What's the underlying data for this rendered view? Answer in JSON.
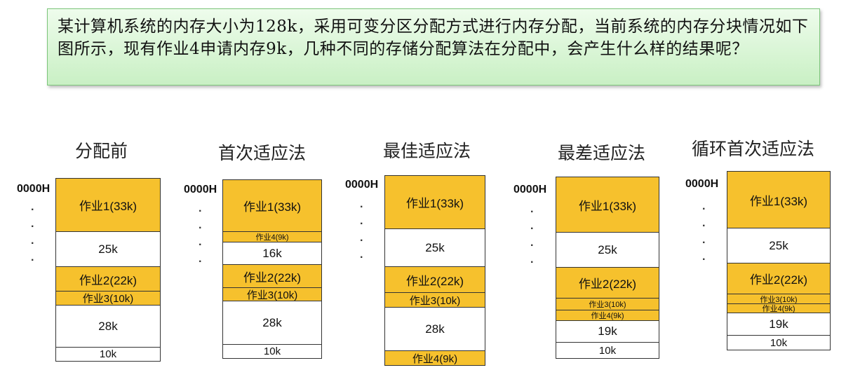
{
  "problem_text": "某计算机系统的内存大小为128k，采用可变分区分配方式进行内存分配，当前系统的内存分块情况如下图所示，现有作业4申请内存9k，几种不同的存储分配算法在分配中，会产生什么样的结果呢？",
  "start_address": "0000H",
  "columns": [
    {
      "title": "分配前",
      "blocks": [
        {
          "label": "作业1(33k)",
          "type": "allocated"
        },
        {
          "label": "25k",
          "type": "free"
        },
        {
          "label": "作业2(22k)",
          "type": "allocated"
        },
        {
          "label": "作业3(10k)",
          "type": "allocated"
        },
        {
          "label": "28k",
          "type": "free"
        },
        {
          "label": "10k",
          "type": "free"
        }
      ]
    },
    {
      "title": "首次适应法",
      "blocks": [
        {
          "label": "作业1(33k)",
          "type": "allocated"
        },
        {
          "label": "作业4(9k)",
          "type": "allocated"
        },
        {
          "label": "16k",
          "type": "free"
        },
        {
          "label": "作业2(22k)",
          "type": "allocated"
        },
        {
          "label": "作业3(10k)",
          "type": "allocated"
        },
        {
          "label": "28k",
          "type": "free"
        },
        {
          "label": "10k",
          "type": "free"
        }
      ]
    },
    {
      "title": "最佳适应法",
      "blocks": [
        {
          "label": "作业1(33k)",
          "type": "allocated"
        },
        {
          "label": "25k",
          "type": "free"
        },
        {
          "label": "作业2(22k)",
          "type": "allocated"
        },
        {
          "label": "作业3(10k)",
          "type": "allocated"
        },
        {
          "label": "28k",
          "type": "free"
        },
        {
          "label": "作业4(9k)",
          "type": "allocated"
        }
      ]
    },
    {
      "title": "最差适应法",
      "blocks": [
        {
          "label": "作业1(33k)",
          "type": "allocated"
        },
        {
          "label": "25k",
          "type": "free"
        },
        {
          "label": "作业2(22k)",
          "type": "allocated"
        },
        {
          "label": "作业3(10k)",
          "type": "allocated"
        },
        {
          "label": "作业4(9k)",
          "type": "allocated"
        },
        {
          "label": "19k",
          "type": "free"
        },
        {
          "label": "10k",
          "type": "free"
        }
      ]
    },
    {
      "title": "循环首次适应法",
      "blocks": [
        {
          "label": "作业1(33k)",
          "type": "allocated"
        },
        {
          "label": "25k",
          "type": "free"
        },
        {
          "label": "作业2(22k)",
          "type": "allocated"
        },
        {
          "label": "作业3(10k)",
          "type": "allocated"
        },
        {
          "label": "作业4(9k)",
          "type": "allocated"
        },
        {
          "label": "19k",
          "type": "free"
        },
        {
          "label": "10k",
          "type": "free"
        }
      ]
    }
  ],
  "colors": {
    "allocated": "#f6c12d",
    "free": "#ffffff",
    "problem_box": "#d9f5d4"
  }
}
